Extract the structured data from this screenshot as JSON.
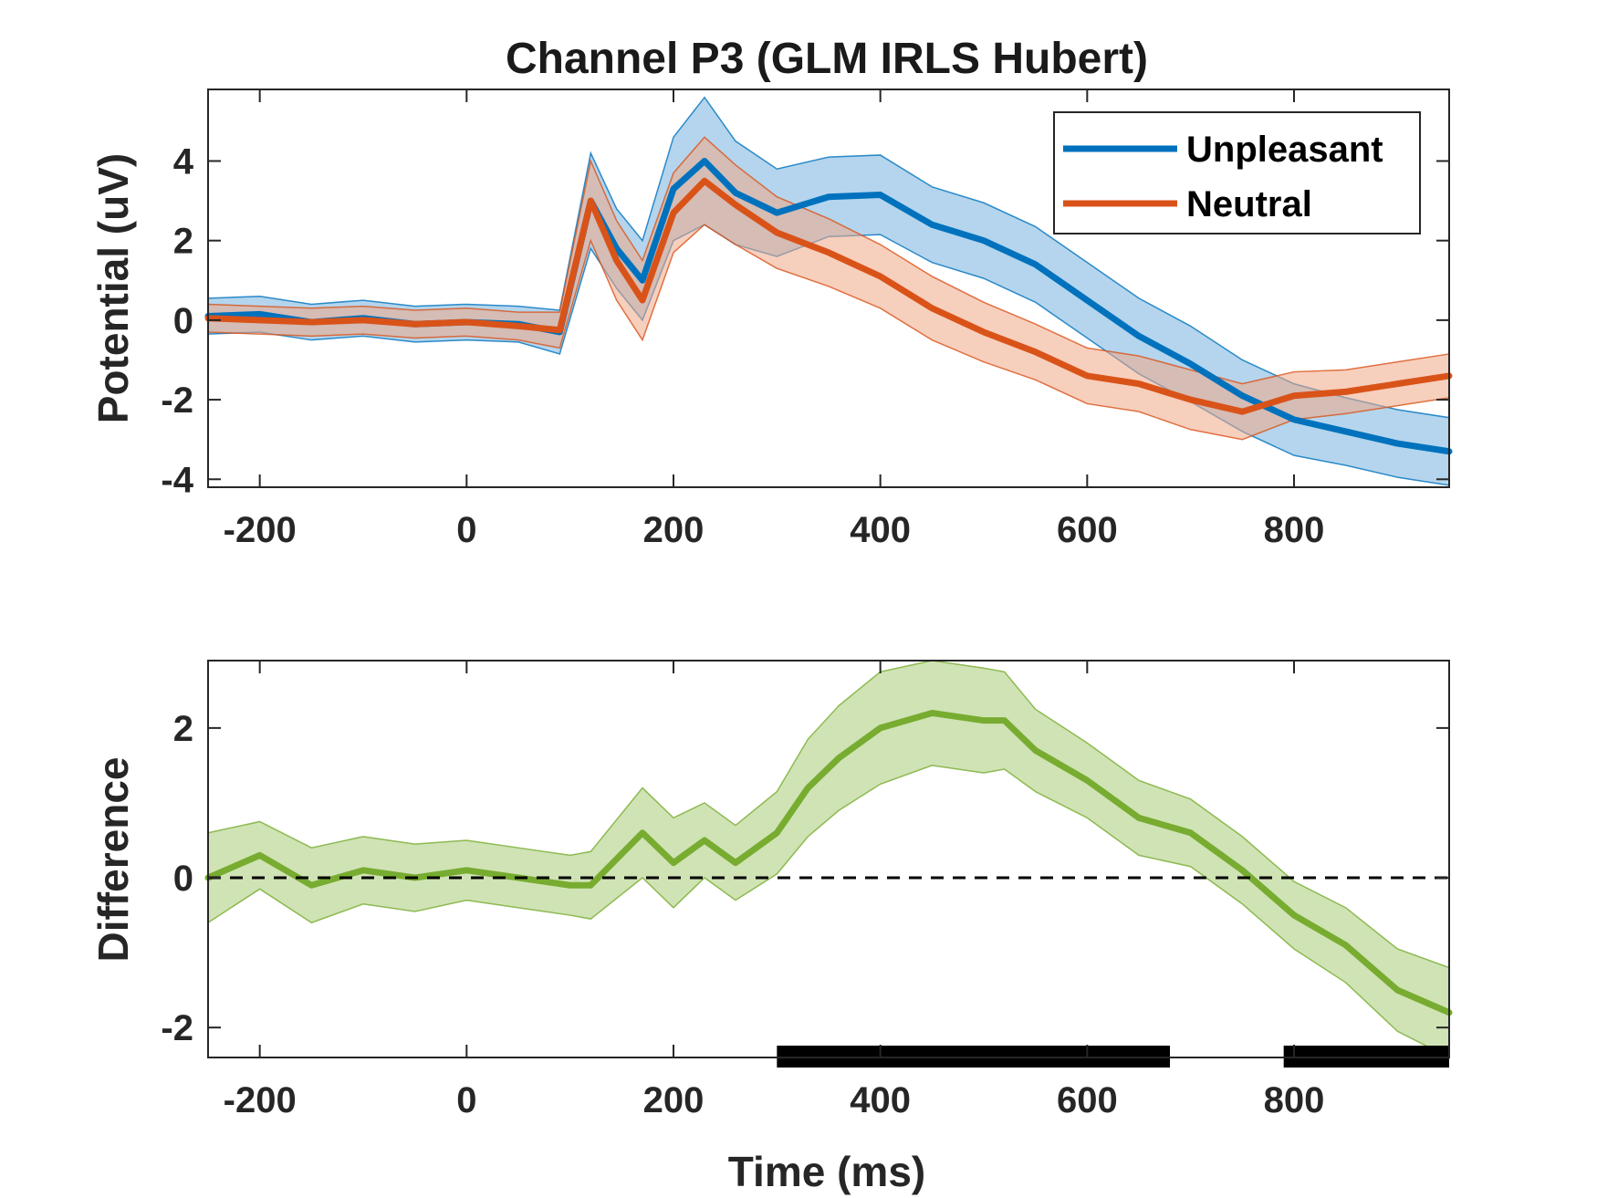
{
  "chart_data": [
    {
      "type": "line",
      "title": "Channel P3 (GLM IRLS Hubert)",
      "xlabel": "",
      "ylabel": "Potential (uV)",
      "xlim": [
        -250,
        950
      ],
      "ylim": [
        -4.2,
        5.8
      ],
      "xticks": [
        -200,
        0,
        200,
        400,
        600,
        800
      ],
      "yticks": [
        -4,
        -2,
        0,
        2,
        4
      ],
      "grid": false,
      "legend_position": "top-right",
      "x": [
        -250,
        -200,
        -150,
        -100,
        -50,
        0,
        50,
        90,
        120,
        145,
        170,
        200,
        230,
        260,
        300,
        350,
        400,
        450,
        500,
        550,
        600,
        650,
        700,
        750,
        800,
        850,
        900,
        950
      ],
      "series": [
        {
          "name": "Unpleasant",
          "color": "#0072BD",
          "band_color": "#77B3DE",
          "y": [
            0.1,
            0.15,
            -0.05,
            0.05,
            -0.1,
            -0.05,
            -0.1,
            -0.3,
            3.0,
            1.8,
            1.0,
            3.3,
            4.0,
            3.2,
            2.7,
            3.1,
            3.15,
            2.4,
            2.0,
            1.4,
            0.5,
            -0.4,
            -1.1,
            -1.9,
            -2.5,
            -2.8,
            -3.1,
            -3.3
          ],
          "ci": [
            0.45,
            0.45,
            0.45,
            0.45,
            0.45,
            0.45,
            0.45,
            0.55,
            1.2,
            1.0,
            1.0,
            1.3,
            1.6,
            1.3,
            1.1,
            1.0,
            1.0,
            0.95,
            0.95,
            0.95,
            0.95,
            0.95,
            0.95,
            0.9,
            0.9,
            0.85,
            0.85,
            0.85
          ]
        },
        {
          "name": "Neutral",
          "color": "#D95319",
          "band_color": "#F0A786",
          "y": [
            0.05,
            0.0,
            -0.05,
            0.0,
            -0.1,
            -0.05,
            -0.15,
            -0.25,
            3.0,
            1.5,
            0.5,
            2.7,
            3.5,
            2.9,
            2.2,
            1.7,
            1.1,
            0.3,
            -0.3,
            -0.8,
            -1.4,
            -1.6,
            -2.0,
            -2.3,
            -1.9,
            -1.8,
            -1.6,
            -1.4
          ],
          "ci": [
            0.35,
            0.35,
            0.35,
            0.35,
            0.35,
            0.35,
            0.35,
            0.45,
            1.0,
            1.0,
            1.0,
            1.0,
            1.1,
            1.0,
            0.9,
            0.85,
            0.8,
            0.8,
            0.75,
            0.7,
            0.7,
            0.7,
            0.75,
            0.7,
            0.6,
            0.55,
            0.55,
            0.55
          ]
        }
      ]
    },
    {
      "type": "line",
      "title": "",
      "xlabel": "Time (ms)",
      "ylabel": "Difference",
      "xlim": [
        -250,
        950
      ],
      "ylim": [
        -2.4,
        2.9
      ],
      "xticks": [
        -200,
        0,
        200,
        400,
        600,
        800
      ],
      "yticks": [
        -2,
        0,
        2
      ],
      "grid": false,
      "zero_line": "dashed",
      "x": [
        -250,
        -200,
        -150,
        -100,
        -50,
        0,
        50,
        100,
        120,
        170,
        200,
        230,
        260,
        300,
        330,
        360,
        400,
        450,
        500,
        520,
        550,
        600,
        650,
        700,
        750,
        800,
        850,
        900,
        950
      ],
      "series": [
        {
          "name": "",
          "color": "#77AC30",
          "band_color": "#A9CC78",
          "y": [
            0.0,
            0.3,
            -0.1,
            0.1,
            0.0,
            0.1,
            0.0,
            -0.1,
            -0.1,
            0.6,
            0.2,
            0.5,
            0.2,
            0.6,
            1.2,
            1.6,
            2.0,
            2.2,
            2.1,
            2.1,
            1.7,
            1.3,
            0.8,
            0.6,
            0.1,
            -0.5,
            -0.9,
            -1.5,
            -1.8
          ],
          "ci": [
            0.6,
            0.45,
            0.5,
            0.45,
            0.45,
            0.4,
            0.4,
            0.4,
            0.45,
            0.6,
            0.6,
            0.5,
            0.5,
            0.55,
            0.65,
            0.7,
            0.75,
            0.7,
            0.7,
            0.65,
            0.55,
            0.5,
            0.5,
            0.45,
            0.45,
            0.45,
            0.5,
            0.55,
            0.6
          ]
        }
      ],
      "significance_bars": [
        [
          300,
          680
        ],
        [
          790,
          950
        ]
      ]
    }
  ]
}
